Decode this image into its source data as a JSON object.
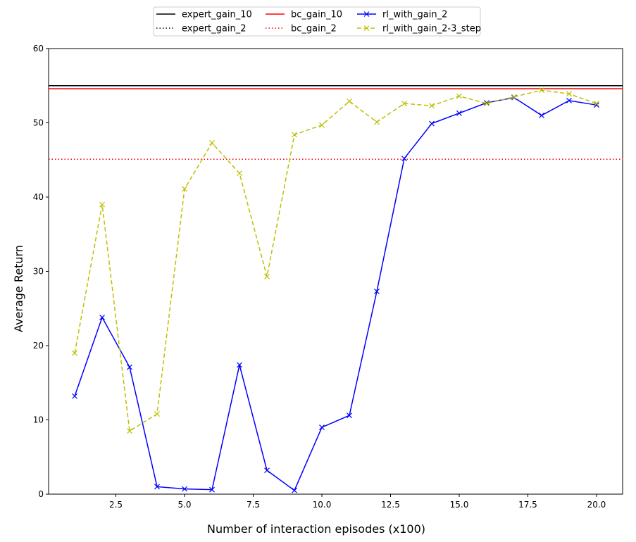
{
  "chart_data": {
    "type": "line",
    "xlabel": "Number of interaction episodes (x100)",
    "ylabel": "Average Return",
    "xlim": [
      0.05,
      20.95
    ],
    "ylim": [
      0,
      60
    ],
    "x_ticks": [
      2.5,
      5.0,
      7.5,
      10.0,
      12.5,
      15.0,
      17.5,
      20.0
    ],
    "x_tick_labels": [
      "2.5",
      "5.0",
      "7.5",
      "10.0",
      "12.5",
      "15.0",
      "17.5",
      "20.0"
    ],
    "y_ticks": [
      0,
      10,
      20,
      30,
      40,
      50,
      60
    ],
    "y_tick_labels": [
      "0",
      "10",
      "20",
      "30",
      "40",
      "50",
      "60"
    ],
    "grid": false,
    "legend_position": "top-center",
    "hlines": [
      {
        "name": "expert_gain_10",
        "y": 55.0,
        "color": "#000000",
        "style": "solid"
      },
      {
        "name": "expert_gain_2",
        "y": 55.0,
        "color": "#000000",
        "style": "dotted"
      },
      {
        "name": "bc_gain_10",
        "y": 54.6,
        "color": "#ff0000",
        "style": "solid"
      },
      {
        "name": "bc_gain_2",
        "y": 45.1,
        "color": "#ff0000",
        "style": "dotted"
      }
    ],
    "series": [
      {
        "name": "rl_with_gain_2",
        "color": "#0000ff",
        "style": "solid",
        "marker": "x",
        "x": [
          1,
          2,
          3,
          4,
          5,
          6,
          7,
          8,
          9,
          10,
          11,
          12,
          13,
          14,
          15,
          16,
          17,
          18,
          19,
          20
        ],
        "y": [
          13.2,
          23.8,
          17.1,
          1.0,
          0.7,
          0.6,
          17.4,
          3.2,
          0.5,
          9.0,
          10.6,
          27.3,
          45.2,
          49.9,
          51.3,
          52.7,
          53.4,
          51.0,
          53.0,
          52.4
        ]
      },
      {
        "name": "rl_with_gain_2-3_step",
        "color": "#bfbf00",
        "style": "dashed",
        "marker": "x",
        "x": [
          1,
          2,
          3,
          4,
          5,
          6,
          7,
          8,
          9,
          10,
          11,
          12,
          13,
          14,
          15,
          16,
          17,
          18,
          19,
          20
        ],
        "y": [
          19.0,
          39.0,
          8.5,
          10.8,
          41.1,
          47.3,
          43.2,
          29.3,
          48.4,
          49.7,
          52.9,
          50.1,
          52.6,
          52.3,
          53.6,
          52.6,
          53.5,
          54.4,
          53.9,
          52.6
        ]
      }
    ]
  }
}
